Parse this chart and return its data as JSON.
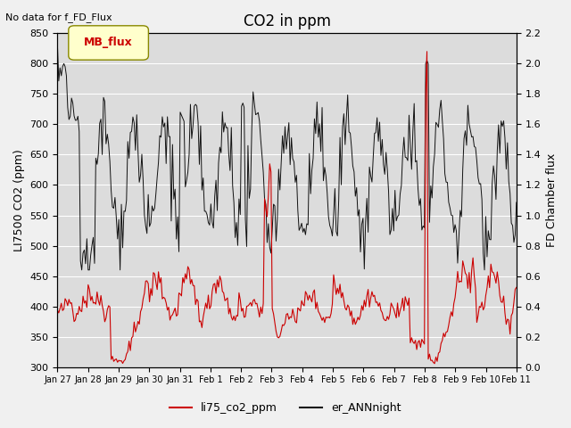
{
  "title": "CO2 in ppm",
  "topleft_text": "No data for f_FD_Flux",
  "ylabel_left": "LI7500 CO2 (ppm)",
  "ylabel_right": "FD Chamber flux",
  "ylim_left": [
    300,
    850
  ],
  "ylim_right": [
    0.0,
    2.2
  ],
  "yticks_left": [
    300,
    350,
    400,
    450,
    500,
    550,
    600,
    650,
    700,
    750,
    800,
    850
  ],
  "yticks_right": [
    0.0,
    0.2,
    0.4,
    0.6,
    0.8,
    1.0,
    1.2,
    1.4,
    1.6,
    1.8,
    2.0,
    2.2
  ],
  "xtick_labels": [
    "Jan 27",
    "Jan 28",
    "Jan 29",
    "Jan 30",
    "Jan 31",
    "Feb 1",
    "Feb 2",
    "Feb 3",
    "Feb 4",
    "Feb 5",
    "Feb 6",
    "Feb 7",
    "Feb 8",
    "Feb 9",
    "Feb 10",
    "Feb 11"
  ],
  "background_color": "#e8e8e8",
  "plot_bg_color": "#dcdcdc",
  "line_red_color": "#cc0000",
  "line_black_color": "#111111",
  "legend_box_color": "#ffffcc",
  "legend_box_edgecolor": "#888800",
  "legend_box_text": "MB_flux",
  "legend_box_textcolor": "#cc0000",
  "legend_label_red": "li75_co2_ppm",
  "legend_label_black": "er_ANNnight",
  "figsize": [
    6.4,
    4.8
  ],
  "dpi": 100
}
